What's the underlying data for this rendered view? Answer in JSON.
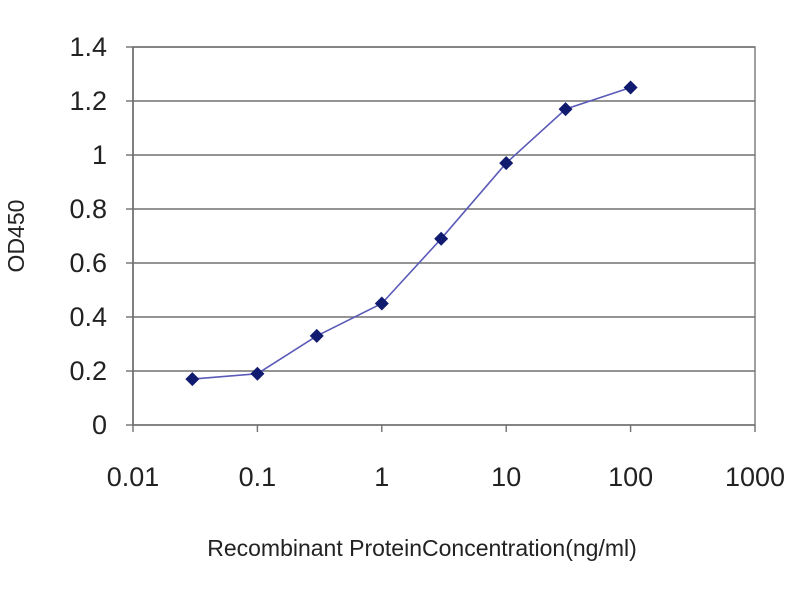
{
  "chart_data": {
    "type": "line",
    "title": "",
    "xlabel": "Recombinant ProteinConcentration(ng/ml)",
    "ylabel": "OD450",
    "x_scale": "log",
    "xlim": [
      0.01,
      1000
    ],
    "ylim": [
      0,
      1.4
    ],
    "x_ticks": [
      "0.01",
      "0.1",
      "1",
      "10",
      "100",
      "1000"
    ],
    "y_ticks": [
      "0",
      "0.2",
      "0.4",
      "0.6",
      "0.8",
      "1",
      "1.2",
      "1.4"
    ],
    "grid": "horizontal",
    "legend": "none",
    "series": [
      {
        "color": "#5b5bb8",
        "marker_color": "#101a6e",
        "marker": "diamond",
        "points": [
          {
            "x": 0.03,
            "y": 0.17
          },
          {
            "x": 0.1,
            "y": 0.19
          },
          {
            "x": 0.3,
            "y": 0.33
          },
          {
            "x": 1,
            "y": 0.45
          },
          {
            "x": 3,
            "y": 0.69
          },
          {
            "x": 10,
            "y": 0.97
          },
          {
            "x": 30,
            "y": 1.17
          },
          {
            "x": 100,
            "y": 1.25
          }
        ]
      }
    ]
  }
}
